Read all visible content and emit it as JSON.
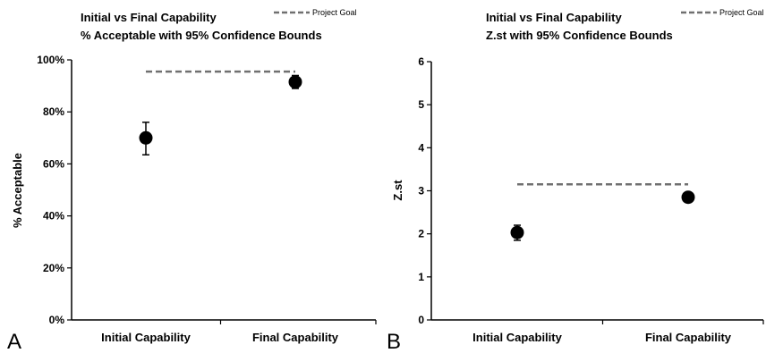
{
  "chart_data": [
    {
      "type": "scatter",
      "panel_label": "A",
      "title": "Initial vs Final Capability",
      "subtitle": "% Acceptable with 95% Confidence Bounds",
      "ylabel": "% Acceptable",
      "xlabel": "",
      "categories": [
        "Initial Capability",
        "Final Capability"
      ],
      "ylim": [
        0,
        100
      ],
      "yticks": [
        "0%",
        "20%",
        "40%",
        "60%",
        "80%",
        "100%"
      ],
      "ytick_values": [
        0,
        20,
        40,
        60,
        80,
        100
      ],
      "series": [
        {
          "values": [
            70,
            91.5
          ],
          "lower": [
            63.5,
            89
          ],
          "upper": [
            76,
            94
          ],
          "color": "#000000"
        }
      ],
      "reference_line": {
        "name": "Project Goal",
        "value": 95.5,
        "color": "#707070",
        "style": "dashed"
      },
      "legend_position": "top-right",
      "grid": false
    },
    {
      "type": "scatter",
      "panel_label": "B",
      "title": "Initial vs Final Capability",
      "subtitle": "Z.st with 95% Confidence Bounds",
      "ylabel": "Z.st",
      "xlabel": "",
      "categories": [
        "Initial Capability",
        "Final Capability"
      ],
      "ylim": [
        0,
        6
      ],
      "yticks": [
        "0",
        "1",
        "2",
        "3",
        "4",
        "5",
        "6"
      ],
      "ytick_values": [
        0,
        1,
        2,
        3,
        4,
        5,
        6
      ],
      "series": [
        {
          "values": [
            2.03,
            2.85
          ],
          "lower": [
            1.85,
            2.75
          ],
          "upper": [
            2.2,
            2.95
          ],
          "color": "#000000"
        }
      ],
      "reference_line": {
        "name": "Project Goal",
        "value": 3.15,
        "color": "#707070",
        "style": "dashed"
      },
      "legend_position": "top-right",
      "grid": false
    }
  ]
}
